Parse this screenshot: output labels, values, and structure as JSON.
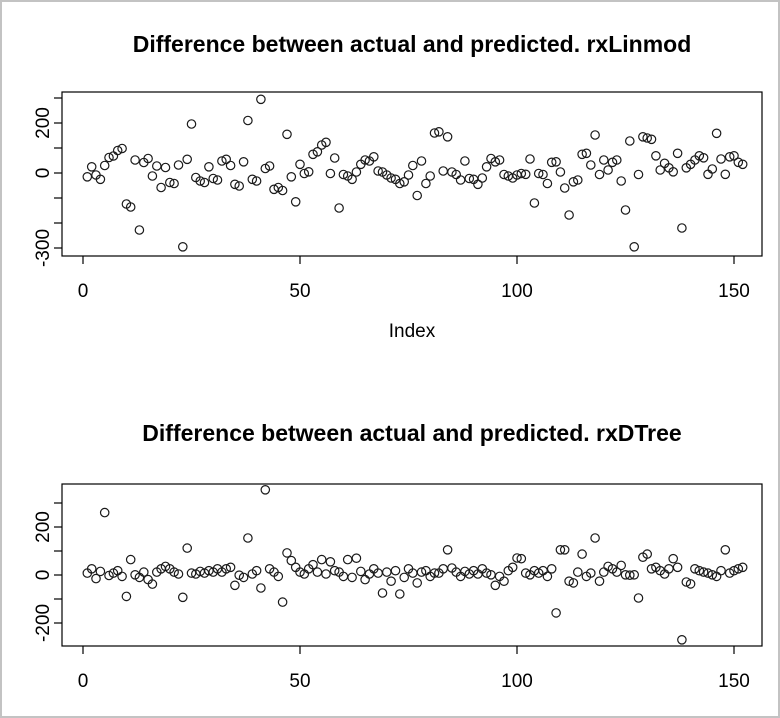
{
  "window": {
    "background": "#ffffff",
    "border_color": "#c3c3c3",
    "foreground": "#000000"
  },
  "chart_data": [
    {
      "type": "scatter",
      "title": "Difference between actual and predicted. rxLinmod",
      "xlabel": "Index",
      "ylabel": "",
      "marker": "open-circle",
      "grid": false,
      "legend": null,
      "xlim": [
        -6,
        158
      ],
      "ylim": [
        -332,
        324
      ],
      "x_ticks": [
        0,
        50,
        100,
        150
      ],
      "y_ticks": [
        -300,
        -200,
        -100,
        0,
        100,
        200,
        300
      ],
      "y_ticks_labeled": [
        {
          "v": -300,
          "label": "-300"
        },
        {
          "v": 0,
          "label": "0"
        },
        {
          "v": 200,
          "label": "200"
        }
      ],
      "points": [
        [
          1,
          -15
        ],
        [
          2,
          25
        ],
        [
          3,
          -8
        ],
        [
          4,
          -25
        ],
        [
          5,
          30
        ],
        [
          6,
          62
        ],
        [
          7,
          68
        ],
        [
          8,
          90
        ],
        [
          9,
          98
        ],
        [
          10,
          -124
        ],
        [
          11,
          -136
        ],
        [
          12,
          52
        ],
        [
          13,
          -228
        ],
        [
          14,
          42
        ],
        [
          15,
          58
        ],
        [
          16,
          -12
        ],
        [
          17,
          28
        ],
        [
          18,
          -58
        ],
        [
          19,
          22
        ],
        [
          20,
          -38
        ],
        [
          21,
          -42
        ],
        [
          22,
          32
        ],
        [
          23,
          -295
        ],
        [
          24,
          55
        ],
        [
          25,
          196
        ],
        [
          26,
          -18
        ],
        [
          27,
          -32
        ],
        [
          28,
          -38
        ],
        [
          29,
          25
        ],
        [
          30,
          -22
        ],
        [
          31,
          -28
        ],
        [
          32,
          48
        ],
        [
          33,
          55
        ],
        [
          34,
          30
        ],
        [
          35,
          -45
        ],
        [
          36,
          -52
        ],
        [
          37,
          45
        ],
        [
          38,
          210
        ],
        [
          39,
          -25
        ],
        [
          40,
          -32
        ],
        [
          41,
          295
        ],
        [
          42,
          18
        ],
        [
          43,
          28
        ],
        [
          44,
          -65
        ],
        [
          45,
          -58
        ],
        [
          46,
          -70
        ],
        [
          47,
          155
        ],
        [
          48,
          -15
        ],
        [
          49,
          -115
        ],
        [
          50,
          35
        ],
        [
          51,
          -2
        ],
        [
          52,
          5
        ],
        [
          53,
          75
        ],
        [
          54,
          85
        ],
        [
          55,
          112
        ],
        [
          56,
          123
        ],
        [
          57,
          -2
        ],
        [
          58,
          60
        ],
        [
          59,
          -140
        ],
        [
          60,
          -6
        ],
        [
          61,
          -12
        ],
        [
          62,
          -25
        ],
        [
          63,
          4
        ],
        [
          64,
          35
        ],
        [
          65,
          52
        ],
        [
          66,
          48
        ],
        [
          67,
          65
        ],
        [
          68,
          8
        ],
        [
          69,
          4
        ],
        [
          70,
          -8
        ],
        [
          71,
          -20
        ],
        [
          72,
          -25
        ],
        [
          73,
          -42
        ],
        [
          74,
          -35
        ],
        [
          75,
          -8
        ],
        [
          76,
          30
        ],
        [
          77,
          -90
        ],
        [
          78,
          48
        ],
        [
          79,
          -42
        ],
        [
          80,
          -12
        ],
        [
          81,
          160
        ],
        [
          82,
          165
        ],
        [
          83,
          8
        ],
        [
          84,
          145
        ],
        [
          85,
          4
        ],
        [
          86,
          -6
        ],
        [
          87,
          -28
        ],
        [
          88,
          48
        ],
        [
          89,
          -22
        ],
        [
          90,
          -25
        ],
        [
          91,
          -45
        ],
        [
          92,
          -20
        ],
        [
          93,
          25
        ],
        [
          94,
          58
        ],
        [
          95,
          45
        ],
        [
          96,
          52
        ],
        [
          97,
          -6
        ],
        [
          98,
          -12
        ],
        [
          99,
          -20
        ],
        [
          100,
          -8
        ],
        [
          101,
          -2
        ],
        [
          102,
          -5
        ],
        [
          103,
          56
        ],
        [
          104,
          -120
        ],
        [
          105,
          -2
        ],
        [
          106,
          -6
        ],
        [
          107,
          -42
        ],
        [
          108,
          43
        ],
        [
          109,
          45
        ],
        [
          110,
          4
        ],
        [
          111,
          -60
        ],
        [
          112,
          -168
        ],
        [
          113,
          -35
        ],
        [
          114,
          -28
        ],
        [
          115,
          75
        ],
        [
          116,
          79
        ],
        [
          117,
          32
        ],
        [
          118,
          152
        ],
        [
          119,
          -6
        ],
        [
          120,
          52
        ],
        [
          121,
          12
        ],
        [
          122,
          43
        ],
        [
          123,
          52
        ],
        [
          124,
          -32
        ],
        [
          125,
          -148
        ],
        [
          126,
          128
        ],
        [
          127,
          -295
        ],
        [
          128,
          -6
        ],
        [
          129,
          145
        ],
        [
          130,
          140
        ],
        [
          131,
          135
        ],
        [
          132,
          69
        ],
        [
          133,
          12
        ],
        [
          134,
          39
        ],
        [
          135,
          21
        ],
        [
          136,
          5
        ],
        [
          137,
          79
        ],
        [
          138,
          -220
        ],
        [
          139,
          21
        ],
        [
          140,
          35
        ],
        [
          141,
          52
        ],
        [
          142,
          69
        ],
        [
          143,
          61
        ],
        [
          144,
          -5
        ],
        [
          145,
          16
        ],
        [
          146,
          159
        ],
        [
          147,
          56
        ],
        [
          148,
          -5
        ],
        [
          149,
          65
        ],
        [
          150,
          69
        ],
        [
          151,
          43
        ],
        [
          152,
          35
        ]
      ]
    },
    {
      "type": "scatter",
      "title": "Difference between actual and predicted. rxDTree",
      "xlabel": "",
      "ylabel": "",
      "marker": "open-circle",
      "grid": false,
      "legend": null,
      "xlim": [
        -6,
        158
      ],
      "ylim": [
        -293,
        379
      ],
      "x_ticks": [
        0,
        50,
        100,
        150
      ],
      "y_ticks": [
        -200,
        -100,
        0,
        100,
        200,
        300
      ],
      "y_ticks_labeled": [
        {
          "v": -200,
          "label": "-200"
        },
        {
          "v": 0,
          "label": "0"
        },
        {
          "v": 200,
          "label": "200"
        }
      ],
      "points": [
        [
          1,
          8
        ],
        [
          2,
          26
        ],
        [
          3,
          -15
        ],
        [
          4,
          15
        ],
        [
          5,
          260
        ],
        [
          6,
          -2
        ],
        [
          7,
          8
        ],
        [
          8,
          18
        ],
        [
          9,
          -6
        ],
        [
          10,
          -89
        ],
        [
          11,
          64
        ],
        [
          12,
          1
        ],
        [
          13,
          -10
        ],
        [
          14,
          12
        ],
        [
          15,
          -19
        ],
        [
          16,
          -38
        ],
        [
          17,
          12
        ],
        [
          18,
          26
        ],
        [
          19,
          36
        ],
        [
          20,
          26
        ],
        [
          21,
          12
        ],
        [
          22,
          4
        ],
        [
          23,
          -93
        ],
        [
          24,
          112
        ],
        [
          25,
          8
        ],
        [
          26,
          4
        ],
        [
          27,
          15
        ],
        [
          28,
          8
        ],
        [
          29,
          18
        ],
        [
          30,
          12
        ],
        [
          31,
          26
        ],
        [
          32,
          12
        ],
        [
          33,
          26
        ],
        [
          34,
          32
        ],
        [
          35,
          -43
        ],
        [
          36,
          -1
        ],
        [
          37,
          -10
        ],
        [
          38,
          154
        ],
        [
          39,
          4
        ],
        [
          40,
          18
        ],
        [
          41,
          -54
        ],
        [
          42,
          355
        ],
        [
          43,
          26
        ],
        [
          44,
          12
        ],
        [
          45,
          -6
        ],
        [
          46,
          -113
        ],
        [
          47,
          92
        ],
        [
          48,
          60
        ],
        [
          49,
          32
        ],
        [
          50,
          12
        ],
        [
          51,
          4
        ],
        [
          52,
          26
        ],
        [
          53,
          43
        ],
        [
          54,
          12
        ],
        [
          55,
          64
        ],
        [
          56,
          4
        ],
        [
          57,
          55
        ],
        [
          58,
          18
        ],
        [
          59,
          12
        ],
        [
          60,
          -6
        ],
        [
          61,
          64
        ],
        [
          62,
          -10
        ],
        [
          63,
          70
        ],
        [
          64,
          15
        ],
        [
          65,
          -19
        ],
        [
          66,
          4
        ],
        [
          67,
          26
        ],
        [
          68,
          8
        ],
        [
          69,
          -75
        ],
        [
          70,
          12
        ],
        [
          71,
          -26
        ],
        [
          72,
          18
        ],
        [
          73,
          -79
        ],
        [
          74,
          -10
        ],
        [
          75,
          26
        ],
        [
          76,
          8
        ],
        [
          77,
          -33
        ],
        [
          78,
          12
        ],
        [
          79,
          18
        ],
        [
          80,
          -6
        ],
        [
          81,
          8
        ],
        [
          82,
          8
        ],
        [
          83,
          26
        ],
        [
          84,
          105
        ],
        [
          85,
          29
        ],
        [
          86,
          12
        ],
        [
          87,
          -6
        ],
        [
          88,
          15
        ],
        [
          89,
          4
        ],
        [
          90,
          18
        ],
        [
          91,
          4
        ],
        [
          92,
          26
        ],
        [
          93,
          8
        ],
        [
          94,
          1
        ],
        [
          95,
          -43
        ],
        [
          96,
          -6
        ],
        [
          97,
          -26
        ],
        [
          98,
          18
        ],
        [
          99,
          32
        ],
        [
          100,
          71
        ],
        [
          101,
          68
        ],
        [
          102,
          8
        ],
        [
          103,
          1
        ],
        [
          104,
          18
        ],
        [
          105,
          8
        ],
        [
          106,
          18
        ],
        [
          107,
          -6
        ],
        [
          108,
          26
        ],
        [
          109,
          -158
        ],
        [
          110,
          105
        ],
        [
          111,
          105
        ],
        [
          112,
          -26
        ],
        [
          113,
          -33
        ],
        [
          114,
          12
        ],
        [
          115,
          87
        ],
        [
          116,
          -6
        ],
        [
          117,
          8
        ],
        [
          118,
          154
        ],
        [
          119,
          -26
        ],
        [
          120,
          12
        ],
        [
          121,
          36
        ],
        [
          122,
          26
        ],
        [
          123,
          12
        ],
        [
          124,
          40
        ],
        [
          125,
          1
        ],
        [
          126,
          -1
        ],
        [
          127,
          1
        ],
        [
          128,
          -96
        ],
        [
          129,
          74
        ],
        [
          130,
          87
        ],
        [
          131,
          26
        ],
        [
          132,
          32
        ],
        [
          133,
          18
        ],
        [
          134,
          4
        ],
        [
          135,
          26
        ],
        [
          136,
          68
        ],
        [
          137,
          32
        ],
        [
          138,
          -270
        ],
        [
          139,
          -29
        ],
        [
          140,
          -37
        ],
        [
          141,
          26
        ],
        [
          142,
          18
        ],
        [
          143,
          12
        ],
        [
          144,
          8
        ],
        [
          145,
          1
        ],
        [
          146,
          -6
        ],
        [
          147,
          18
        ],
        [
          148,
          105
        ],
        [
          149,
          8
        ],
        [
          150,
          18
        ],
        [
          151,
          26
        ],
        [
          152,
          32
        ]
      ]
    }
  ]
}
